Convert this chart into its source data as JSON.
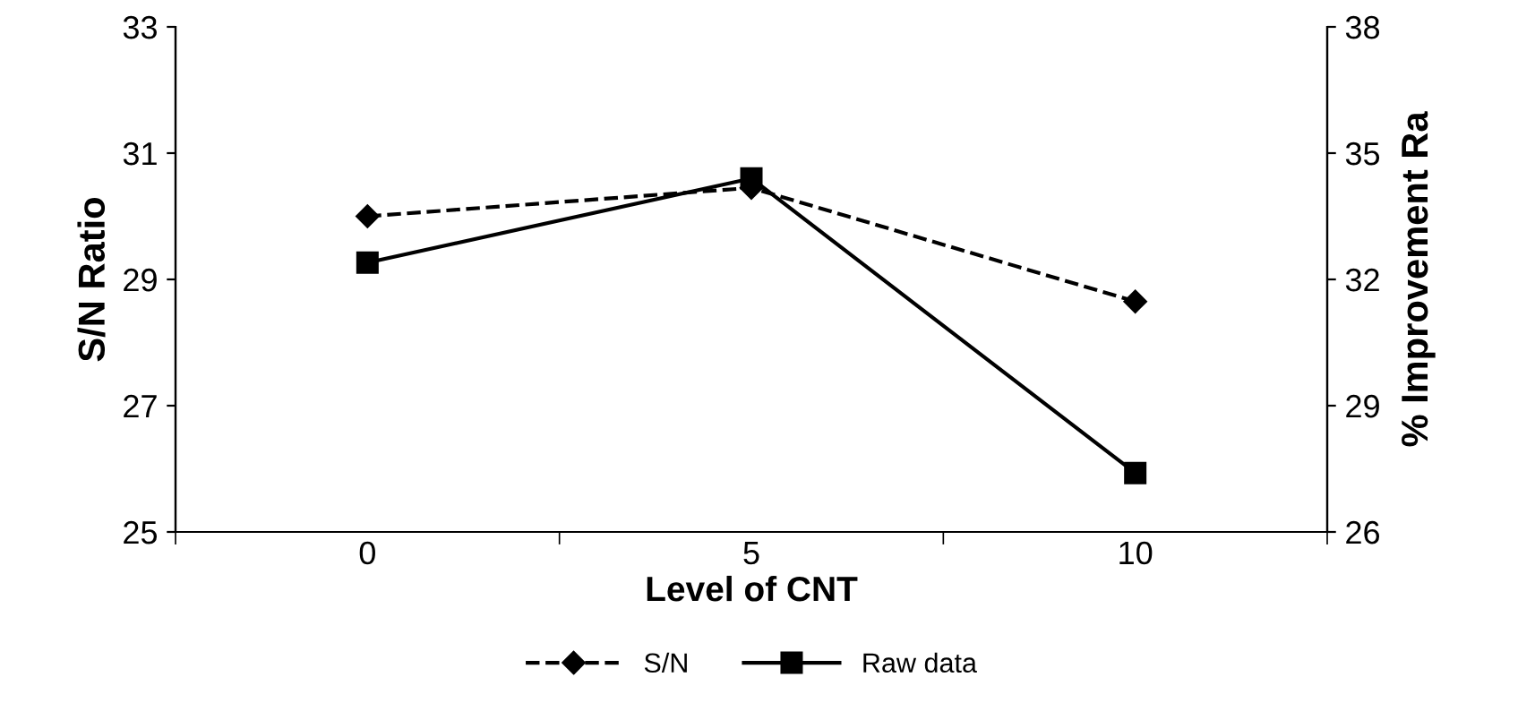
{
  "chart_data": {
    "type": "line",
    "xlabel": "Level of CNT",
    "ylabel": "S/N Ratio",
    "y2label": "% Improvement Ra",
    "categories": [
      "0",
      "5",
      "10"
    ],
    "series": [
      {
        "name": "S/N",
        "color": "#000000",
        "values": [
          30.0,
          30.45,
          28.65
        ],
        "marker": "diamond",
        "line_style": "dashed"
      },
      {
        "name": "Raw data",
        "color": "#000000",
        "values": [
          32.4,
          34.4,
          27.4
        ],
        "axis": "y2",
        "marker": "square",
        "line_style": "solid"
      }
    ],
    "ylim": [
      25,
      33
    ],
    "yticks": [
      25,
      27,
      29,
      31,
      33
    ],
    "y2lim": [
      26,
      38
    ],
    "y2ticks": [
      26,
      29,
      32,
      35,
      38
    ],
    "grid": false,
    "legend": "bottom"
  }
}
